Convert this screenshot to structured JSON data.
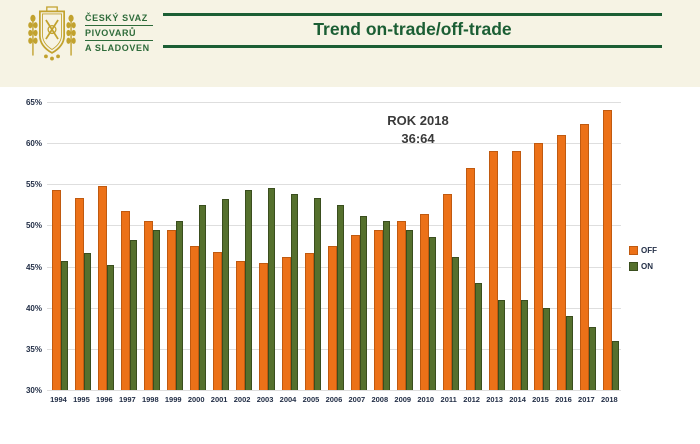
{
  "header": {
    "logo": {
      "line1": "ČESKÝ SVAZ",
      "line2": "PIVOVARŮ",
      "line3": "A SLADOVEN"
    },
    "title": "Trend on-trade/off-trade"
  },
  "annotation": {
    "line1": "ROK 2018",
    "line2": "36:64"
  },
  "colors": {
    "banner_bg": "#f6f3e4",
    "title_green": "#1b5e34",
    "logo_text": "#2e6b3a",
    "logo_gold": "#c2a22e",
    "off_bar": "#ec7118",
    "off_border": "#c05a10",
    "on_bar": "#55702d",
    "on_border": "#3a4e1e",
    "grid": "#dedede",
    "axis_text": "#232f47",
    "annotation": "#3a3a3a"
  },
  "chart_data": {
    "type": "bar",
    "title": "Trend on-trade/off-trade",
    "xlabel": "",
    "ylabel": "",
    "ylim": [
      30,
      65
    ],
    "y_ticks": [
      "65%",
      "60%",
      "55%",
      "50%",
      "45%",
      "40%",
      "35%",
      "30%"
    ],
    "grid": "horizontal",
    "legend_position": "right",
    "annotation": "ROK 2018 36:64",
    "categories": [
      "1994",
      "1995",
      "1996",
      "1997",
      "1998",
      "1999",
      "2000",
      "2001",
      "2002",
      "2003",
      "2004",
      "2005",
      "2006",
      "2007",
      "2008",
      "2009",
      "2010",
      "2011",
      "2012",
      "2013",
      "2014",
      "2015",
      "2016",
      "2017",
      "2018"
    ],
    "series": [
      {
        "name": "OFF",
        "values": [
          54.3,
          53.3,
          54.8,
          51.8,
          50.6,
          49.4,
          47.5,
          46.8,
          45.7,
          45.4,
          46.2,
          46.7,
          47.5,
          48.8,
          49.4,
          50.5,
          51.4,
          53.8,
          57.0,
          59.0,
          59.0,
          60.0,
          61.0,
          62.3,
          64.0
        ]
      },
      {
        "name": "ON",
        "values": [
          45.7,
          46.7,
          45.2,
          48.2,
          49.4,
          50.6,
          52.5,
          53.2,
          54.3,
          54.6,
          53.8,
          53.3,
          52.5,
          51.2,
          50.6,
          49.5,
          48.6,
          46.2,
          43.0,
          41.0,
          41.0,
          40.0,
          39.0,
          37.7,
          36.0
        ]
      }
    ]
  }
}
